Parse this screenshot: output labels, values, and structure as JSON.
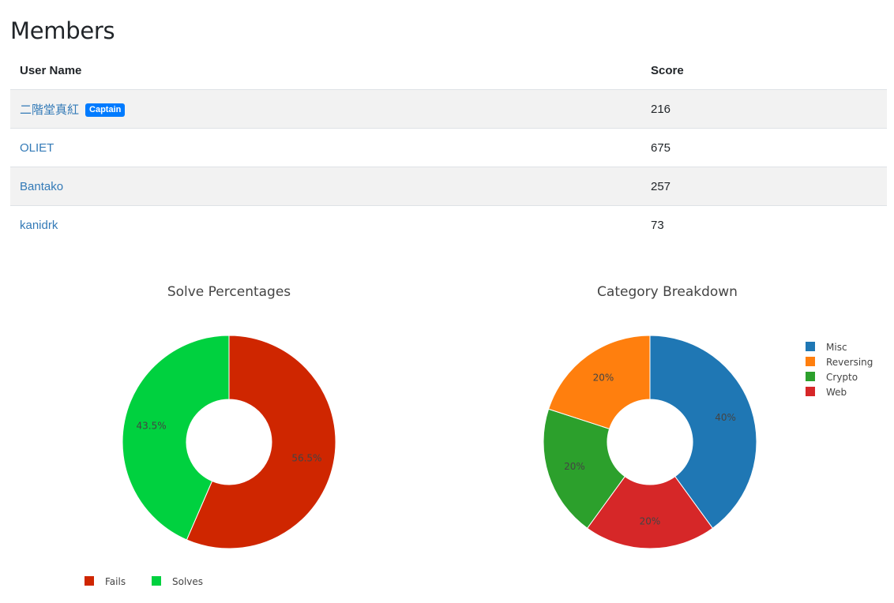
{
  "page": {
    "title": "Members"
  },
  "table": {
    "headers": {
      "name": "User Name",
      "score": "Score"
    },
    "rows": [
      {
        "name": "二階堂真紅",
        "badge": "Captain",
        "score": "216"
      },
      {
        "name": "OLIET",
        "badge": "",
        "score": "675"
      },
      {
        "name": "Bantako",
        "badge": "",
        "score": "257"
      },
      {
        "name": "kanidrk",
        "badge": "",
        "score": "73"
      }
    ]
  },
  "colors": {
    "link": "#337ab7",
    "badge": "#007bff"
  },
  "chart_data": [
    {
      "type": "pie",
      "title": "Solve Percentages",
      "hole": true,
      "legend_placement": "bottom",
      "labels": [
        "Fails",
        "Solves"
      ],
      "values": [
        56.5,
        43.5
      ],
      "value_labels": [
        "56.5%",
        "43.5%"
      ],
      "colors": [
        "#cf2600",
        "#00d13f"
      ]
    },
    {
      "type": "pie",
      "title": "Category Breakdown",
      "hole": true,
      "legend_placement": "top-right",
      "labels": [
        "Misc",
        "Reversing",
        "Crypto",
        "Web"
      ],
      "values": [
        40,
        20,
        20,
        20
      ],
      "value_labels": [
        "40%",
        "20%",
        "20%",
        "20%"
      ],
      "slice_order": [
        "Misc",
        "Web",
        "Crypto",
        "Reversing"
      ],
      "colors": [
        "#1f77b4",
        "#ff7f0e",
        "#2ca02c",
        "#d62728"
      ]
    }
  ]
}
